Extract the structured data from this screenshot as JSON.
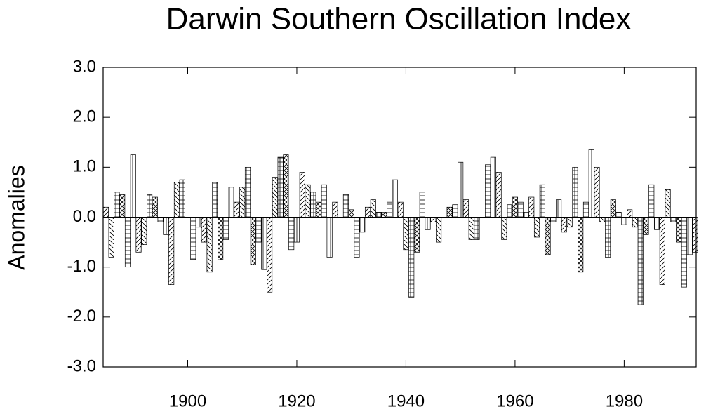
{
  "chart_data": {
    "type": "bar",
    "title": "Darwin Southern Oscillation Index",
    "y_label": "Anomalies",
    "x": [
      1885,
      1886,
      1887,
      1888,
      1889,
      1890,
      1891,
      1892,
      1893,
      1894,
      1895,
      1896,
      1897,
      1898,
      1899,
      1900,
      1901,
      1902,
      1903,
      1904,
      1905,
      1906,
      1907,
      1908,
      1909,
      1910,
      1911,
      1912,
      1913,
      1914,
      1915,
      1916,
      1917,
      1918,
      1919,
      1920,
      1921,
      1922,
      1923,
      1924,
      1925,
      1926,
      1927,
      1928,
      1929,
      1930,
      1931,
      1932,
      1933,
      1934,
      1935,
      1936,
      1937,
      1938,
      1939,
      1940,
      1941,
      1942,
      1943,
      1944,
      1945,
      1946,
      1947,
      1948,
      1949,
      1950,
      1951,
      1952,
      1953,
      1954,
      1955,
      1956,
      1957,
      1958,
      1959,
      1960,
      1961,
      1962,
      1963,
      1964,
      1965,
      1966,
      1967,
      1968,
      1969,
      1970,
      1971,
      1972,
      1973,
      1974,
      1975,
      1976,
      1977,
      1978,
      1979,
      1980,
      1981,
      1982,
      1983,
      1984,
      1985,
      1986,
      1987,
      1988,
      1989,
      1990,
      1991,
      1992,
      1993
    ],
    "values": [
      0.2,
      -0.8,
      0.5,
      0.45,
      -1.0,
      1.25,
      -0.7,
      -0.55,
      0.45,
      0.4,
      -0.1,
      -0.35,
      -1.35,
      0.7,
      0.75,
      0.0,
      -0.85,
      -0.2,
      -0.5,
      -1.1,
      0.7,
      -0.85,
      -0.45,
      0.6,
      0.3,
      0.6,
      1.0,
      -0.95,
      -0.5,
      -1.05,
      -1.5,
      0.8,
      1.2,
      1.25,
      -0.65,
      -0.5,
      0.9,
      0.65,
      0.5,
      0.3,
      0.65,
      -0.8,
      0.3,
      0.0,
      0.45,
      0.15,
      -0.8,
      -0.3,
      0.2,
      0.35,
      0.1,
      0.1,
      0.3,
      0.75,
      0.3,
      -0.65,
      -1.6,
      -0.7,
      0.5,
      -0.25,
      -0.1,
      -0.5,
      0.0,
      0.2,
      0.25,
      1.1,
      0.35,
      -0.45,
      -0.45,
      0.0,
      1.05,
      1.2,
      0.9,
      -0.45,
      0.25,
      0.4,
      0.3,
      0.1,
      0.4,
      -0.4,
      0.65,
      -0.75,
      -0.1,
      0.35,
      -0.3,
      -0.2,
      1.0,
      -1.1,
      0.3,
      1.35,
      1.0,
      -0.1,
      -0.8,
      0.35,
      0.1,
      -0.15,
      0.15,
      -0.2,
      -1.75,
      -0.35,
      0.65,
      -0.25,
      -1.35,
      0.55,
      -0.1,
      -0.5,
      -1.4,
      -0.75,
      -0.7
    ],
    "color": "#000000",
    "hatch": true,
    "xlim": [
      1884.5,
      1993.2
    ],
    "xticks": [
      1900,
      1920,
      1940,
      1960,
      1980
    ],
    "ylim": [
      -3,
      3
    ],
    "yticks": [
      {
        "value": -3,
        "label": "-3.0"
      },
      {
        "value": -2,
        "label": "-2.0"
      },
      {
        "value": -1,
        "label": "-1.0"
      },
      {
        "value": 0,
        "label": "0.0"
      },
      {
        "value": 1,
        "label": "1.0"
      },
      {
        "value": 2,
        "label": "2.0"
      },
      {
        "value": 3,
        "label": "3.0"
      }
    ]
  }
}
